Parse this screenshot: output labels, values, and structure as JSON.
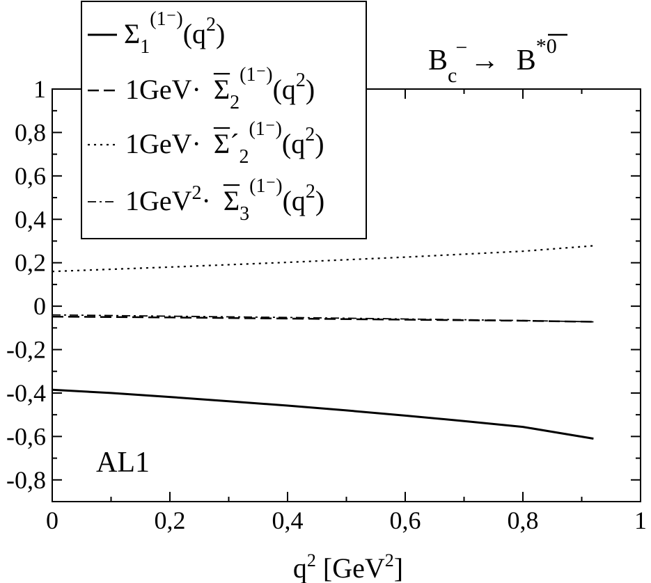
{
  "chart_data": {
    "type": "line",
    "title": "",
    "process": {
      "initial": "B",
      "initial_sub": "c",
      "initial_sup": "−",
      "arrow": "→",
      "final": "B",
      "final_sup": "*0"
    },
    "model_label": "AL1",
    "xlabel": {
      "base": "q",
      "sup": "2",
      "unit_open": " [GeV",
      "unit_sup": "2",
      "unit_close": "]"
    },
    "ylabel": "",
    "xlim": [
      0,
      1
    ],
    "ylim": [
      -0.9,
      1.0
    ],
    "x_ticks": [
      {
        "value": 0,
        "label": "0"
      },
      {
        "value": 0.2,
        "label": "0,2"
      },
      {
        "value": 0.4,
        "label": "0,4"
      },
      {
        "value": 0.6,
        "label": "0,6"
      },
      {
        "value": 0.8,
        "label": "0,8"
      },
      {
        "value": 1.0,
        "label": "1"
      }
    ],
    "y_ticks": [
      {
        "value": -0.8,
        "label": "-0,8"
      },
      {
        "value": -0.6,
        "label": "-0,6"
      },
      {
        "value": -0.4,
        "label": "-0,4"
      },
      {
        "value": -0.2,
        "label": "-0,2"
      },
      {
        "value": 0,
        "label": "0"
      },
      {
        "value": 0.2,
        "label": "0,2"
      },
      {
        "value": 0.4,
        "label": "0,4"
      },
      {
        "value": 0.6,
        "label": "0,6"
      },
      {
        "value": 0.8,
        "label": "0,8"
      },
      {
        "value": 1.0,
        "label": "1"
      }
    ],
    "grid": false,
    "legend_position": "top-left",
    "series": [
      {
        "style": "solid",
        "legend": {
          "prefix": "",
          "sym": "Σ",
          "bar": false,
          "prime": false,
          "sub": "1",
          "sup": "(1⁻)",
          "arg": "(q",
          "arg_sup": "2",
          "arg_close": ")"
        },
        "x": [
          0,
          0.1,
          0.2,
          0.3,
          0.4,
          0.5,
          0.6,
          0.7,
          0.8,
          0.92
        ],
        "y": [
          -0.385,
          -0.4,
          -0.418,
          -0.438,
          -0.458,
          -0.48,
          -0.504,
          -0.529,
          -0.556,
          -0.61
        ]
      },
      {
        "style": "dashed",
        "legend": {
          "prefix": "1GeV· ",
          "sym": "Σ",
          "bar": true,
          "prime": false,
          "sub": "2",
          "sup": "(1⁻)",
          "arg": "(q",
          "arg_sup": "2",
          "arg_close": ")"
        },
        "x": [
          0,
          0.2,
          0.4,
          0.6,
          0.8,
          0.92
        ],
        "y": [
          -0.048,
          -0.052,
          -0.057,
          -0.062,
          -0.067,
          -0.072
        ]
      },
      {
        "style": "dotted",
        "legend": {
          "prefix": "1GeV· ",
          "sym": "Σ",
          "bar": true,
          "prime": true,
          "sub": "2",
          "sup": "(1⁻)",
          "arg": "(q",
          "arg_sup": "2",
          "arg_close": ")"
        },
        "x": [
          0,
          0.2,
          0.4,
          0.6,
          0.8,
          0.92
        ],
        "y": [
          0.16,
          0.18,
          0.202,
          0.226,
          0.253,
          0.278
        ]
      },
      {
        "style": "dash-dot",
        "legend": {
          "prefix": "1GeV",
          "prefix_sup": "2",
          "prefix_tail": "· ",
          "sym": "Σ",
          "bar": true,
          "prime": false,
          "sub": "3",
          "sup": "(1⁻)",
          "arg": "(q",
          "arg_sup": "2",
          "arg_close": ")"
        },
        "x": [
          0,
          0.2,
          0.4,
          0.6,
          0.8,
          0.92
        ],
        "y": [
          -0.04,
          -0.046,
          -0.052,
          -0.059,
          -0.066,
          -0.072
        ]
      }
    ]
  }
}
